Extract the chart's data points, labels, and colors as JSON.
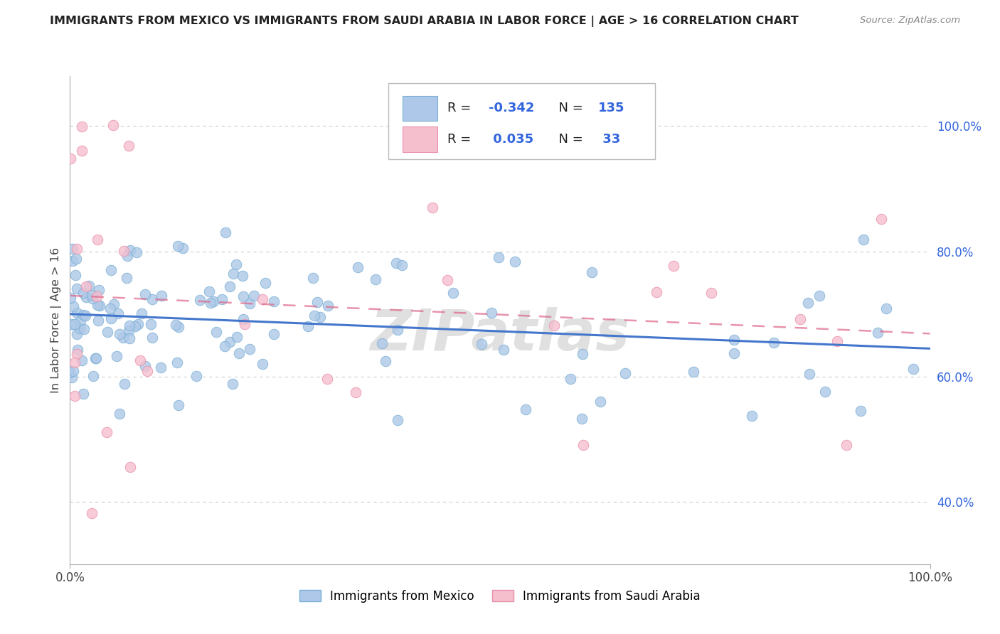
{
  "title": "IMMIGRANTS FROM MEXICO VS IMMIGRANTS FROM SAUDI ARABIA IN LABOR FORCE | AGE > 16 CORRELATION CHART",
  "source": "Source: ZipAtlas.com",
  "ylabel": "In Labor Force | Age > 16",
  "mexico_color": "#adc8e8",
  "mexico_edge": "#7bafd4",
  "mexico_line": "#4477cc",
  "saudi_color": "#f5bfce",
  "saudi_edge": "#e890aa",
  "saudi_line": "#dd6688",
  "mexico_R": -0.342,
  "mexico_N": 135,
  "saudi_R": 0.035,
  "saudi_N": 33,
  "r_color": "#3366dd",
  "n_color": "#3366dd",
  "legend_mexico_label": "Immigrants from Mexico",
  "legend_saudi_label": "Immigrants from Saudi Arabia",
  "watermark": "ZIPatlas",
  "ytick_labels": [
    "40.0%",
    "60.0%",
    "80.0%",
    "100.0%"
  ],
  "ytick_values": [
    0.4,
    0.6,
    0.8,
    1.0
  ],
  "xtick_labels": [
    "0.0%",
    "100.0%"
  ],
  "xtick_values": [
    0.0,
    1.0
  ],
  "xlim": [
    0.0,
    1.0
  ],
  "ylim": [
    0.3,
    1.08
  ]
}
